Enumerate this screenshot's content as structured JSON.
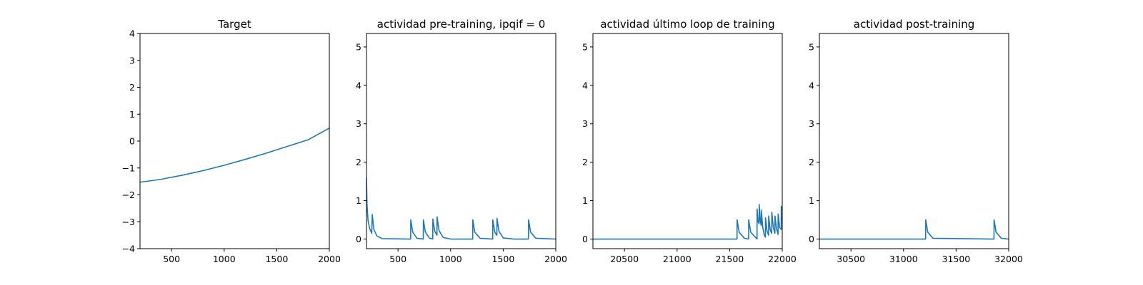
{
  "chart_data": [
    {
      "type": "line",
      "title": "Target",
      "xlim": [
        200,
        2000
      ],
      "ylim": [
        -4,
        4
      ],
      "xticks": [
        500,
        1000,
        1500,
        2000
      ],
      "yticks": [
        -4,
        -3,
        -2,
        -1,
        0,
        1,
        2,
        3,
        4
      ],
      "color": "#1f77b4",
      "x": [
        200,
        400,
        600,
        800,
        1000,
        1200,
        1400,
        1600,
        1800,
        2000
      ],
      "y": [
        -1.53,
        -1.42,
        -1.27,
        -1.1,
        -0.9,
        -0.68,
        -0.45,
        -0.2,
        0.05,
        0.48
      ]
    },
    {
      "type": "line",
      "title": "actividad pre-training, ipqif = 0",
      "xlim": [
        200,
        2000
      ],
      "ylim": [
        -0.25,
        5.35
      ],
      "xticks": [
        500,
        1000,
        1500,
        2000
      ],
      "yticks": [
        0,
        1,
        2,
        3,
        4,
        5
      ],
      "color": "#1f77b4",
      "x": [
        200,
        205,
        215,
        230,
        250,
        255,
        270,
        300,
        350,
        620,
        621,
        640,
        680,
        740,
        741,
        760,
        800,
        830,
        831,
        850,
        870,
        871,
        890,
        930,
        1000,
        1210,
        1211,
        1230,
        1280,
        1400,
        1401,
        1420,
        1440,
        1441,
        1460,
        1500,
        1600,
        1740,
        1741,
        1760,
        1810,
        2000
      ],
      "y": [
        1.62,
        0.9,
        0.48,
        0.28,
        0.15,
        0.64,
        0.25,
        0.08,
        0.01,
        0.0,
        0.5,
        0.18,
        0.02,
        0.0,
        0.5,
        0.18,
        0.02,
        0.0,
        0.52,
        0.2,
        0.1,
        0.58,
        0.22,
        0.04,
        0.0,
        0.0,
        0.5,
        0.18,
        0.02,
        0.0,
        0.5,
        0.18,
        0.1,
        0.54,
        0.2,
        0.03,
        0.0,
        0.0,
        0.5,
        0.18,
        0.02,
        0.0
      ]
    },
    {
      "type": "line",
      "title": "actividad último loop de training",
      "xlim": [
        20200,
        22000
      ],
      "ylim": [
        -0.25,
        5.35
      ],
      "xticks": [
        20500,
        21000,
        21500,
        22000
      ],
      "yticks": [
        0,
        1,
        2,
        3,
        4,
        5
      ],
      "color": "#1f77b4",
      "x": [
        20200,
        21570,
        21571,
        21590,
        21640,
        21680,
        21681,
        21700,
        21760,
        21761,
        21770,
        21780,
        21781,
        21790,
        21800,
        21801,
        21815,
        21830,
        21840,
        21841,
        21855,
        21870,
        21871,
        21885,
        21900,
        21901,
        21915,
        21930,
        21931,
        21945,
        21960,
        21961,
        21975,
        21990,
        21991,
        22000
      ],
      "y": [
        0.0,
        0.0,
        0.5,
        0.18,
        0.02,
        0.0,
        0.5,
        0.18,
        0.0,
        0.78,
        0.45,
        0.4,
        0.9,
        0.5,
        0.35,
        0.75,
        0.3,
        0.1,
        0.05,
        0.55,
        0.22,
        0.1,
        0.6,
        0.25,
        0.15,
        0.7,
        0.3,
        0.15,
        0.6,
        0.28,
        0.12,
        0.65,
        0.3,
        0.25,
        0.85,
        0.45
      ]
    },
    {
      "type": "line",
      "title": "actividad post-training",
      "xlim": [
        30200,
        32000
      ],
      "ylim": [
        -0.25,
        5.35
      ],
      "xticks": [
        30500,
        31000,
        31500,
        32000
      ],
      "yticks": [
        0,
        1,
        2,
        3,
        4,
        5
      ],
      "color": "#1f77b4",
      "x": [
        30200,
        31210,
        31211,
        31230,
        31280,
        31860,
        31861,
        31880,
        31930,
        32000
      ],
      "y": [
        0.0,
        0.0,
        0.5,
        0.18,
        0.02,
        0.0,
        0.5,
        0.18,
        0.02,
        0.0
      ]
    }
  ]
}
